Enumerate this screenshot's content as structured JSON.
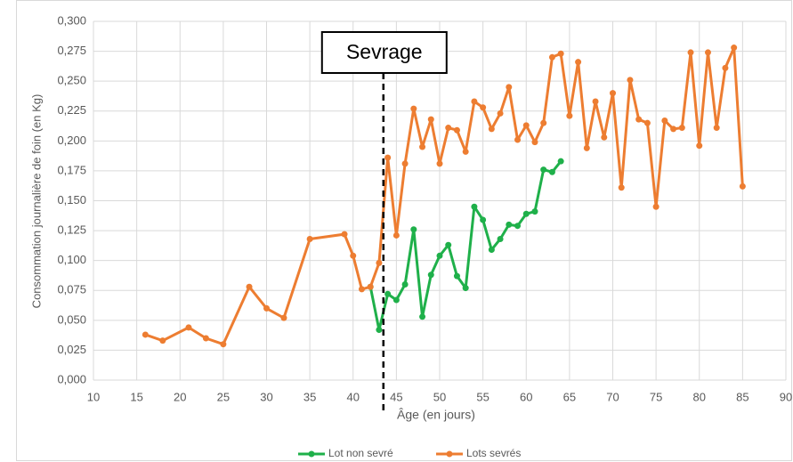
{
  "chart_data": {
    "type": "line",
    "xlabel": "Âge (en jours)",
    "ylabel": "Consommation journalière de foin (en Kg)",
    "xlim": [
      10,
      90
    ],
    "xticks": [
      10,
      15,
      20,
      25,
      30,
      35,
      40,
      45,
      50,
      55,
      60,
      65,
      70,
      75,
      80,
      85,
      90
    ],
    "ylim": [
      0,
      0.3
    ],
    "yticks": [
      {
        "value": 0,
        "label": "0,000"
      },
      {
        "value": 0.025,
        "label": "0,025"
      },
      {
        "value": 0.05,
        "label": "0,050"
      },
      {
        "value": 0.075,
        "label": "0,075"
      },
      {
        "value": 0.1,
        "label": "0,100"
      },
      {
        "value": 0.125,
        "label": "0,125"
      },
      {
        "value": 0.15,
        "label": "0,150"
      },
      {
        "value": 0.175,
        "label": "0,175"
      },
      {
        "value": 0.2,
        "label": "0,200"
      },
      {
        "value": 0.225,
        "label": "0,225"
      },
      {
        "value": 0.25,
        "label": "0,250"
      },
      {
        "value": 0.275,
        "label": "0,275"
      },
      {
        "value": 0.3,
        "label": "0,300"
      }
    ],
    "grid": true,
    "legend": "bottom",
    "annotations": [
      {
        "text": "Sevrage",
        "x": 43.5
      }
    ],
    "series": [
      {
        "name": "Lot non sevré",
        "color": "#1fb04a",
        "x": [
          42,
          43,
          44,
          45,
          46,
          47,
          48,
          49,
          50,
          51,
          52,
          53,
          54,
          55,
          56,
          57,
          58,
          59,
          60,
          61,
          62,
          63,
          64
        ],
        "values": [
          0.078,
          0.042,
          0.072,
          0.067,
          0.08,
          0.126,
          0.053,
          0.088,
          0.104,
          0.113,
          0.087,
          0.077,
          0.145,
          0.134,
          0.109,
          0.118,
          0.13,
          0.129,
          0.139,
          0.141,
          0.176,
          0.174,
          0.183
        ]
      },
      {
        "name": "Lots sevrés",
        "color": "#ed7d31",
        "x": [
          16,
          18,
          21,
          23,
          25,
          28,
          30,
          32,
          35,
          39,
          40,
          41,
          42,
          43,
          44,
          45,
          46,
          47,
          48,
          49,
          50,
          51,
          52,
          53,
          54,
          55,
          56,
          57,
          58,
          59,
          60,
          61,
          62,
          63,
          64,
          65,
          66,
          67,
          68,
          69,
          70,
          71,
          72,
          73,
          74,
          75,
          76,
          77,
          78,
          79,
          80,
          81,
          82,
          83,
          84,
          85
        ],
        "values": [
          0.038,
          0.033,
          0.044,
          0.035,
          0.03,
          0.078,
          0.06,
          0.052,
          0.118,
          0.122,
          0.104,
          0.076,
          0.078,
          0.098,
          0.186,
          0.121,
          0.181,
          0.227,
          0.195,
          0.218,
          0.181,
          0.211,
          0.209,
          0.191,
          0.233,
          0.228,
          0.21,
          0.223,
          0.245,
          0.201,
          0.213,
          0.199,
          0.215,
          0.27,
          0.273,
          0.221,
          0.266,
          0.194,
          0.233,
          0.203,
          0.24,
          0.161,
          0.251,
          0.218,
          0.215,
          0.145,
          0.217,
          0.21,
          0.211,
          0.274,
          0.196,
          0.274,
          0.211,
          0.261,
          0.278,
          0.162
        ]
      }
    ]
  }
}
